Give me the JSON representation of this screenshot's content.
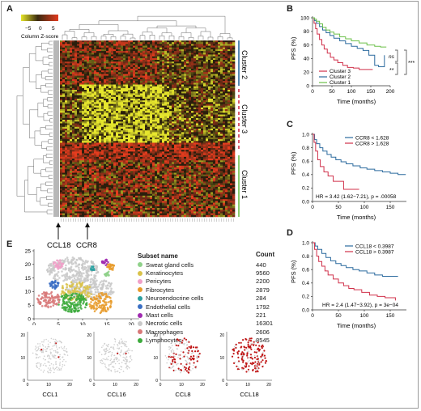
{
  "panels": {
    "a": "A",
    "b": "B",
    "c": "C",
    "d": "D",
    "e": "E"
  },
  "heatmap": {
    "scale_title": "Column Z-score",
    "scale_ticks": [
      "−5",
      "0",
      "5"
    ],
    "clusters": [
      "Cluster 2",
      "Cluster 3",
      "Cluster 1"
    ],
    "markers": [
      "CCL18",
      "CCR8"
    ]
  },
  "km_b": {
    "ylabel": "PFS (%)",
    "xlabel": "Time (months)",
    "yticks": [
      "0",
      "20",
      "40",
      "60",
      "80",
      "100"
    ],
    "xticks": [
      "0",
      "50",
      "100",
      "150",
      "200"
    ],
    "legend": [
      "Cluster 3",
      "Cluster 2",
      "Cluster 1"
    ],
    "sig": [
      "ns",
      "**",
      "***"
    ]
  },
  "km_c": {
    "ylabel": "PFS (%)",
    "xlabel": "Time (months)",
    "yticks": [
      "0.0",
      "0.2",
      "0.4",
      "0.6",
      "0.8",
      "1.0"
    ],
    "xticks": [
      "0",
      "50",
      "100",
      "150"
    ],
    "legend": [
      "CCR8 < 1.628",
      "CCR8 > 1.628"
    ],
    "hr": "HR = 3.42 (1.62−7.21), p = .00058"
  },
  "km_d": {
    "ylabel": "PFS (%)",
    "xlabel": "Time (months)",
    "yticks": [
      "0.0",
      "0.2",
      "0.4",
      "0.6",
      "0.8",
      "1.0"
    ],
    "xticks": [
      "0",
      "50",
      "100",
      "150"
    ],
    "legend": [
      "CCL18 < 0.3987",
      "CCL18 > 0.3987"
    ],
    "hr": "HR = 2.4 (1.47−3.92), p = 3e−04"
  },
  "umap": {
    "yticks": [
      "0",
      "5",
      "10",
      "15",
      "20",
      "25"
    ],
    "xticks": [
      "0",
      "5",
      "10",
      "15",
      "20"
    ],
    "small_xticks": [
      "0",
      "10",
      "20"
    ],
    "small_yticks": [
      "0",
      "10",
      "20"
    ],
    "subset_header": "Subset name",
    "count_header": "Count",
    "subsets": [
      {
        "name": "Sweat gland cells",
        "count": "440",
        "color": "#8fd18a"
      },
      {
        "name": "Keratinocytes",
        "count": "9560",
        "color": "#d9c24a"
      },
      {
        "name": "Pericytes",
        "count": "2200",
        "color": "#f0a0c8"
      },
      {
        "name": "Fibrocytes",
        "count": "2879",
        "color": "#e89b2a"
      },
      {
        "name": "Neuroendocrine cells",
        "count": "284",
        "color": "#2ca0a0"
      },
      {
        "name": "Endothelial cells",
        "count": "1792",
        "color": "#3b6fc4"
      },
      {
        "name": "Mast cells",
        "count": "221",
        "color": "#a02ab0"
      },
      {
        "name": "Necrotic cells",
        "count": "16301",
        "color": "#c9c9c9"
      },
      {
        "name": "Macrophages",
        "count": "2606",
        "color": "#d87878"
      },
      {
        "name": "Lymphocytes",
        "count": "8545",
        "color": "#3caa3c"
      }
    ],
    "feature_plots": [
      "CCL1",
      "CCL16",
      "CCL8",
      "CCL18"
    ]
  },
  "colors": {
    "cluster1": "#6cc04a",
    "cluster2": "#2b6a9e",
    "cluster3": "#d0304a",
    "heat_low": "#d8d830",
    "heat_high": "#d83020"
  }
}
